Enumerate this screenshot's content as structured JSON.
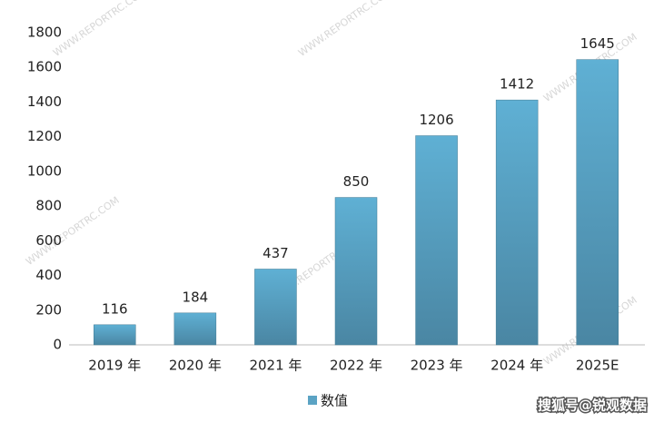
{
  "chart_data": {
    "type": "bar",
    "categories": [
      "2019 年",
      "2020 年",
      "2021 年",
      "2022 年",
      "2023 年",
      "2024 年",
      "2025E"
    ],
    "series": [
      {
        "name": "数值",
        "color": "#5ba3c4",
        "values": [
          116,
          184,
          437,
          850,
          1206,
          1412,
          1645
        ]
      }
    ],
    "ylim": [
      0,
      1800
    ],
    "yticks": [
      0,
      200,
      400,
      600,
      800,
      1000,
      1200,
      1400,
      1600,
      1800
    ],
    "grid": false,
    "legend": "bottom",
    "watermark": "WWW.REPORTRC.COM",
    "annotations": [
      "搜狐号@锐观数据"
    ]
  }
}
